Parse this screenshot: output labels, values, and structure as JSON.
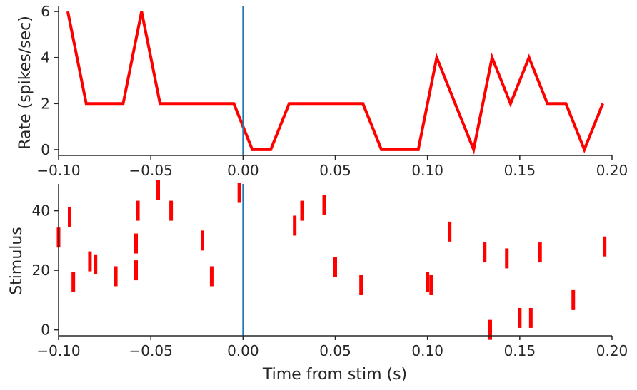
{
  "chart_data": [
    {
      "type": "line",
      "title": "",
      "xlabel": "",
      "ylabel": "Rate (spikes/sec)",
      "xlim": [
        -0.1,
        0.2
      ],
      "ylim": [
        -0.25,
        6.25
      ],
      "xticks": [
        "−0.10",
        "−0.05",
        "0.00",
        "0.05",
        "0.10",
        "0.15",
        "0.20"
      ],
      "xtick_values": [
        -0.1,
        -0.05,
        0.0,
        0.05,
        0.1,
        0.15,
        0.2
      ],
      "yticks": [
        "0",
        "2",
        "4",
        "6"
      ],
      "ytick_values": [
        0,
        2,
        4,
        6
      ],
      "grid": false,
      "series": [
        {
          "color": "#ff0000",
          "x": [
            -0.095,
            -0.085,
            -0.075,
            -0.065,
            -0.055,
            -0.045,
            -0.035,
            -0.025,
            -0.015,
            -0.005,
            0.005,
            0.015,
            0.025,
            0.035,
            0.045,
            0.055,
            0.065,
            0.075,
            0.085,
            0.095,
            0.105,
            0.115,
            0.125,
            0.135,
            0.145,
            0.155,
            0.165,
            0.175,
            0.185,
            0.195
          ],
          "values": [
            6,
            2,
            2,
            2,
            6,
            2,
            2,
            2,
            2,
            2,
            0,
            0,
            2,
            2,
            2,
            2,
            2,
            0,
            0,
            0,
            4,
            2,
            0,
            4,
            2,
            4,
            2,
            2,
            0,
            2
          ]
        }
      ],
      "vline": {
        "x": 0.0,
        "color": "#1f77b4"
      }
    },
    {
      "type": "scatter",
      "title": "",
      "xlabel": "Time from stim (s)",
      "ylabel": "Stimulus",
      "xlim": [
        -0.1,
        0.2
      ],
      "ylim": [
        -2,
        49
      ],
      "xticks": [
        "−0.10",
        "−0.05",
        "0.00",
        "0.05",
        "0.10",
        "0.15",
        "0.20"
      ],
      "xtick_values": [
        -0.1,
        -0.05,
        0.0,
        0.05,
        0.1,
        0.15,
        0.2
      ],
      "yticks": [
        "0",
        "20",
        "40"
      ],
      "ytick_values": [
        0,
        20,
        40
      ],
      "grid": false,
      "marker": "vertical-tick",
      "color": "#ff0000",
      "points": [
        {
          "x": -0.1,
          "y": 31
        },
        {
          "x": -0.094,
          "y": 38
        },
        {
          "x": -0.092,
          "y": 16
        },
        {
          "x": -0.083,
          "y": 23
        },
        {
          "x": -0.08,
          "y": 22
        },
        {
          "x": -0.069,
          "y": 18
        },
        {
          "x": -0.057,
          "y": 40
        },
        {
          "x": -0.058,
          "y": 29
        },
        {
          "x": -0.058,
          "y": 20
        },
        {
          "x": -0.046,
          "y": 47
        },
        {
          "x": -0.039,
          "y": 40
        },
        {
          "x": -0.022,
          "y": 30
        },
        {
          "x": -0.017,
          "y": 18
        },
        {
          "x": -0.002,
          "y": 46
        },
        {
          "x": 0.028,
          "y": 35
        },
        {
          "x": 0.032,
          "y": 40
        },
        {
          "x": 0.044,
          "y": 42
        },
        {
          "x": 0.05,
          "y": 21
        },
        {
          "x": 0.064,
          "y": 15
        },
        {
          "x": 0.1,
          "y": 16
        },
        {
          "x": 0.102,
          "y": 15
        },
        {
          "x": 0.112,
          "y": 33
        },
        {
          "x": 0.131,
          "y": 26
        },
        {
          "x": 0.134,
          "y": 0
        },
        {
          "x": 0.143,
          "y": 24
        },
        {
          "x": 0.15,
          "y": 4
        },
        {
          "x": 0.156,
          "y": 4
        },
        {
          "x": 0.161,
          "y": 26
        },
        {
          "x": 0.179,
          "y": 10
        },
        {
          "x": 0.196,
          "y": 28
        }
      ],
      "vline": {
        "x": 0.0,
        "color": "#1f77b4"
      }
    }
  ]
}
